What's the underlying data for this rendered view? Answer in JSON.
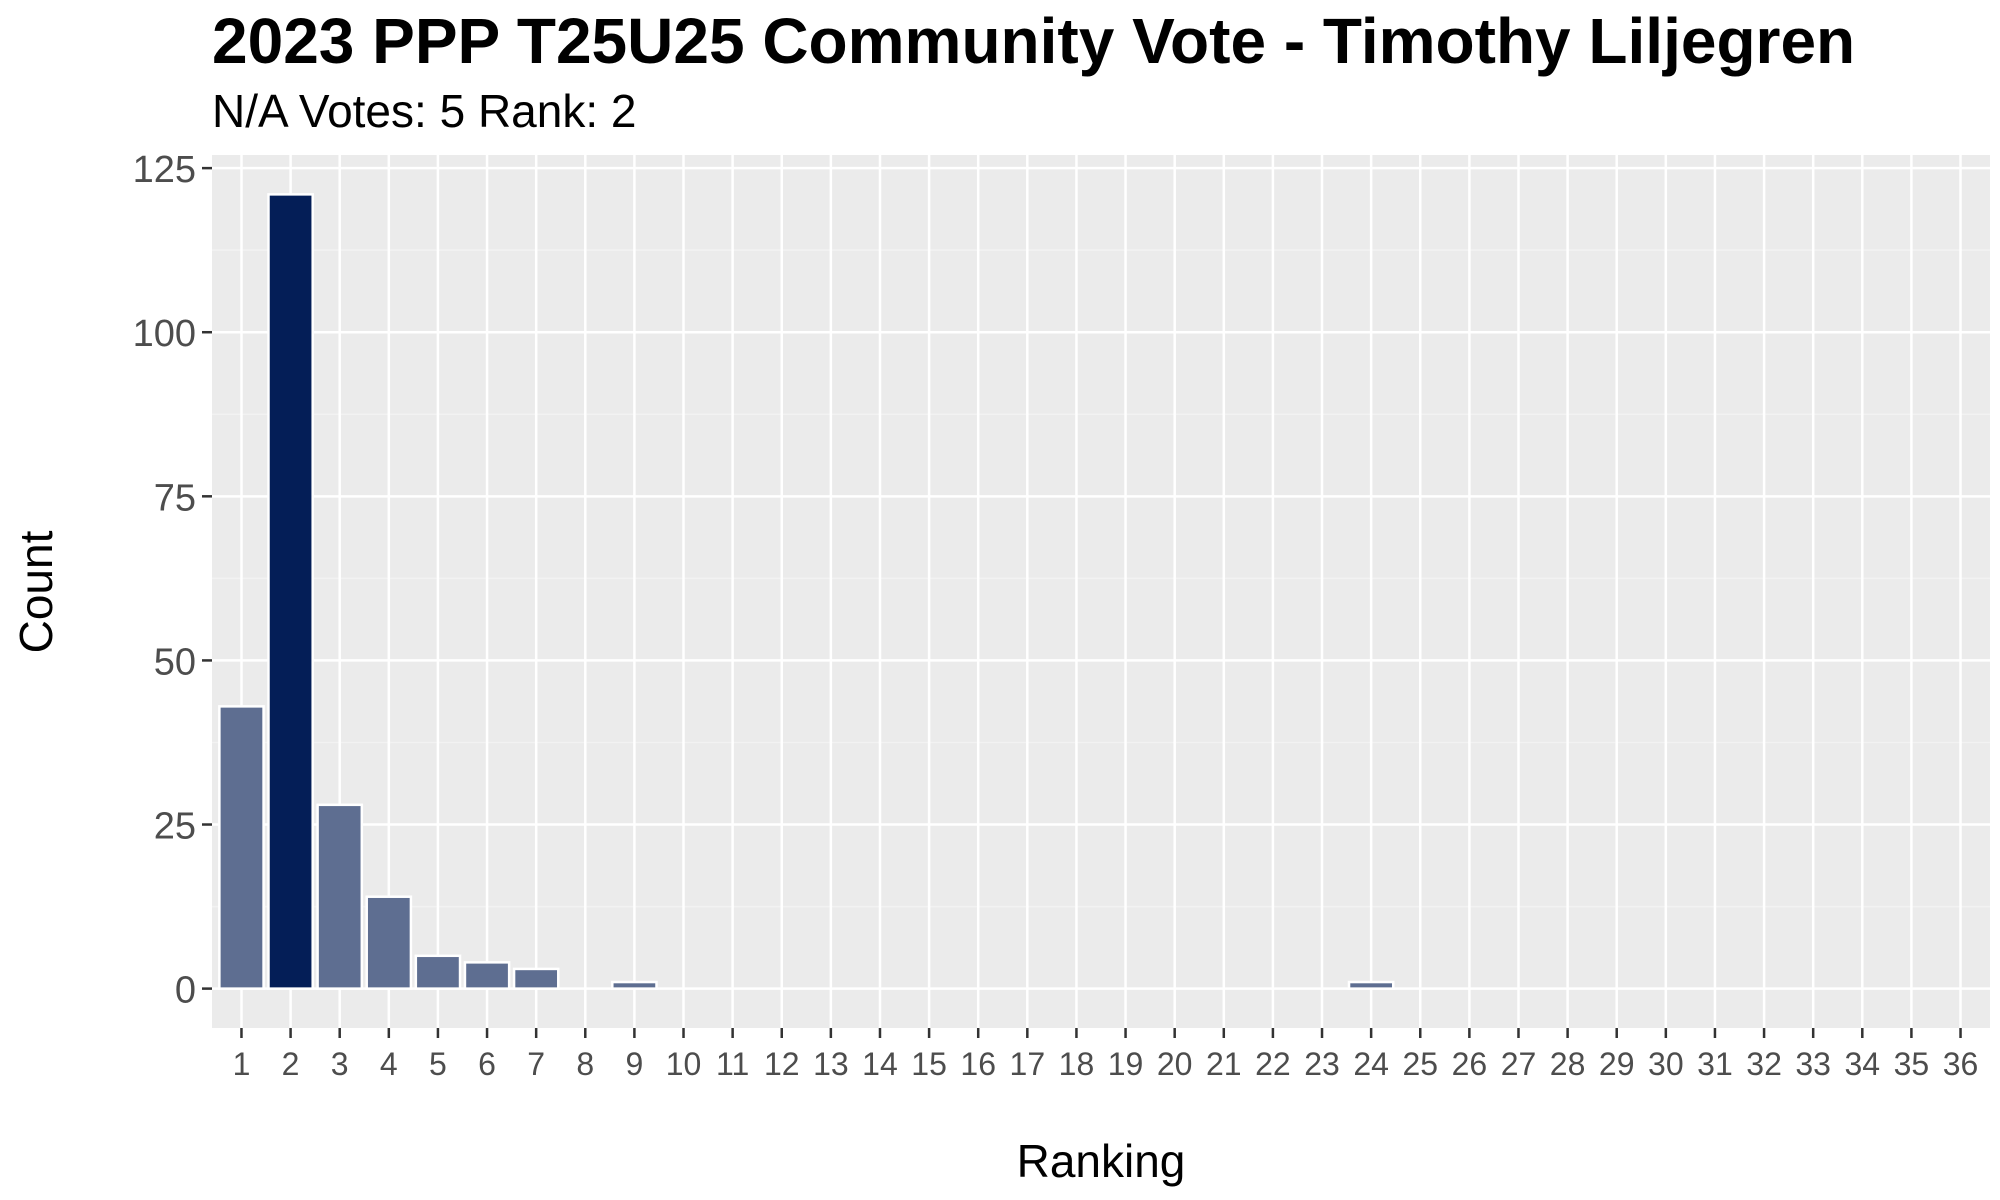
{
  "chart_data": {
    "type": "bar",
    "title": "2023 PPP T25U25 Community Vote - Timothy Liljegren",
    "subtitle": "N/A Votes: 5  Rank: 2",
    "xlabel": "Ranking",
    "ylabel": "Count",
    "categories": [
      "1",
      "2",
      "3",
      "4",
      "5",
      "6",
      "7",
      "8",
      "9",
      "10",
      "11",
      "12",
      "13",
      "14",
      "15",
      "16",
      "17",
      "18",
      "19",
      "20",
      "21",
      "22",
      "23",
      "24",
      "25",
      "26",
      "27",
      "28",
      "29",
      "30",
      "31",
      "32",
      "33",
      "34",
      "35",
      "36"
    ],
    "values": [
      43,
      121,
      28,
      14,
      5,
      4,
      3,
      0,
      1,
      0,
      0,
      0,
      0,
      0,
      0,
      0,
      0,
      0,
      0,
      0,
      0,
      0,
      0,
      1,
      0,
      0,
      0,
      0,
      0,
      0,
      0,
      0,
      0,
      0,
      0,
      0
    ],
    "highlight_category": "2",
    "yticks": [
      0,
      25,
      50,
      75,
      100,
      125
    ],
    "ylim": [
      -6,
      127
    ],
    "grid": true,
    "colors": {
      "bar": "#5e6e91",
      "highlight": "#041e57",
      "bar_outline": "#ffffff",
      "panel_bg": "#ebebeb",
      "grid_major": "#ffffff",
      "grid_minor": "#f2f2f2",
      "tick_text": "#4d4d4d",
      "tick_mark": "#333333"
    }
  }
}
